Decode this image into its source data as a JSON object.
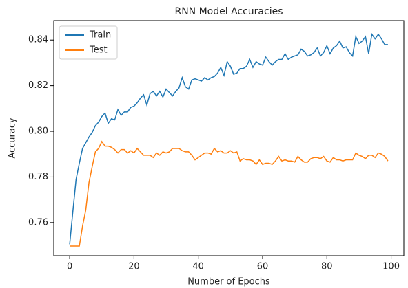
{
  "chart_data": {
    "type": "line",
    "title": "RNN Model Accuracies",
    "x_label": "Number of Epochs",
    "y_label": "Accuracy",
    "x": [
      0,
      1,
      2,
      3,
      4,
      5,
      6,
      7,
      8,
      9,
      10,
      11,
      12,
      13,
      14,
      15,
      16,
      17,
      18,
      19,
      20,
      21,
      22,
      23,
      24,
      25,
      26,
      27,
      28,
      29,
      30,
      31,
      32,
      33,
      34,
      35,
      36,
      37,
      38,
      39,
      40,
      41,
      42,
      43,
      44,
      45,
      46,
      47,
      48,
      49,
      50,
      51,
      52,
      53,
      54,
      55,
      56,
      57,
      58,
      59,
      60,
      61,
      62,
      63,
      64,
      65,
      66,
      67,
      68,
      69,
      70,
      71,
      72,
      73,
      74,
      75,
      76,
      77,
      78,
      79,
      80,
      81,
      82,
      83,
      84,
      85,
      86,
      87,
      88,
      89,
      90,
      91,
      92,
      93,
      94,
      95,
      96,
      97,
      98,
      99
    ],
    "series": [
      {
        "name": "Train",
        "color": "#1f77b4",
        "values": [
          0.7505,
          0.765,
          0.779,
          0.786,
          0.7925,
          0.795,
          0.7975,
          0.7995,
          0.8025,
          0.804,
          0.8065,
          0.808,
          0.8035,
          0.8055,
          0.805,
          0.8095,
          0.807,
          0.8085,
          0.8085,
          0.8105,
          0.811,
          0.8125,
          0.8145,
          0.816,
          0.8115,
          0.8165,
          0.8175,
          0.8155,
          0.8175,
          0.815,
          0.8185,
          0.817,
          0.8155,
          0.8175,
          0.819,
          0.8235,
          0.8195,
          0.8185,
          0.8225,
          0.823,
          0.8225,
          0.822,
          0.8235,
          0.8225,
          0.8235,
          0.824,
          0.8255,
          0.828,
          0.8245,
          0.8305,
          0.8285,
          0.825,
          0.8255,
          0.8275,
          0.8275,
          0.8285,
          0.8315,
          0.828,
          0.8305,
          0.8295,
          0.829,
          0.8325,
          0.8305,
          0.829,
          0.8305,
          0.8315,
          0.8315,
          0.834,
          0.8315,
          0.8325,
          0.833,
          0.8335,
          0.836,
          0.835,
          0.833,
          0.8335,
          0.8345,
          0.8365,
          0.833,
          0.8345,
          0.8375,
          0.834,
          0.8365,
          0.8375,
          0.8395,
          0.8365,
          0.837,
          0.8345,
          0.833,
          0.8415,
          0.8385,
          0.8395,
          0.8415,
          0.834,
          0.8425,
          0.8405,
          0.8425,
          0.8405,
          0.838,
          0.838
        ]
      },
      {
        "name": "Test",
        "color": "#ff7f0e",
        "values": [
          0.7497,
          0.7497,
          0.7497,
          0.7497,
          0.7585,
          0.7655,
          0.7775,
          0.7845,
          0.791,
          0.7925,
          0.7955,
          0.7935,
          0.7935,
          0.793,
          0.792,
          0.7905,
          0.792,
          0.792,
          0.7905,
          0.7915,
          0.7905,
          0.7925,
          0.791,
          0.7895,
          0.7895,
          0.7895,
          0.7885,
          0.7905,
          0.7895,
          0.791,
          0.7905,
          0.791,
          0.7925,
          0.7925,
          0.7925,
          0.7915,
          0.791,
          0.791,
          0.7895,
          0.7875,
          0.7885,
          0.7895,
          0.7905,
          0.7905,
          0.79,
          0.7925,
          0.791,
          0.7915,
          0.7905,
          0.7905,
          0.7915,
          0.7905,
          0.791,
          0.787,
          0.788,
          0.7875,
          0.7875,
          0.787,
          0.7855,
          0.7875,
          0.7855,
          0.786,
          0.786,
          0.7855,
          0.787,
          0.789,
          0.787,
          0.7875,
          0.787,
          0.787,
          0.7865,
          0.789,
          0.7875,
          0.7865,
          0.7865,
          0.788,
          0.7885,
          0.7885,
          0.788,
          0.789,
          0.787,
          0.7865,
          0.7885,
          0.7875,
          0.7875,
          0.787,
          0.7875,
          0.7875,
          0.7875,
          0.7905,
          0.7895,
          0.789,
          0.788,
          0.7895,
          0.7895,
          0.7885,
          0.7905,
          0.79,
          0.789,
          0.787
        ]
      }
    ],
    "xlim": [
      -4.95,
      103.95
    ],
    "ylim": [
      0.7455,
      0.8485
    ],
    "xticks": [
      0,
      20,
      40,
      60,
      80,
      100
    ],
    "yticks": [
      0.76,
      0.78,
      {
        "value": 0.8,
        "label": "0.80"
      },
      0.82,
      0.84
    ],
    "legend": "upper left"
  }
}
